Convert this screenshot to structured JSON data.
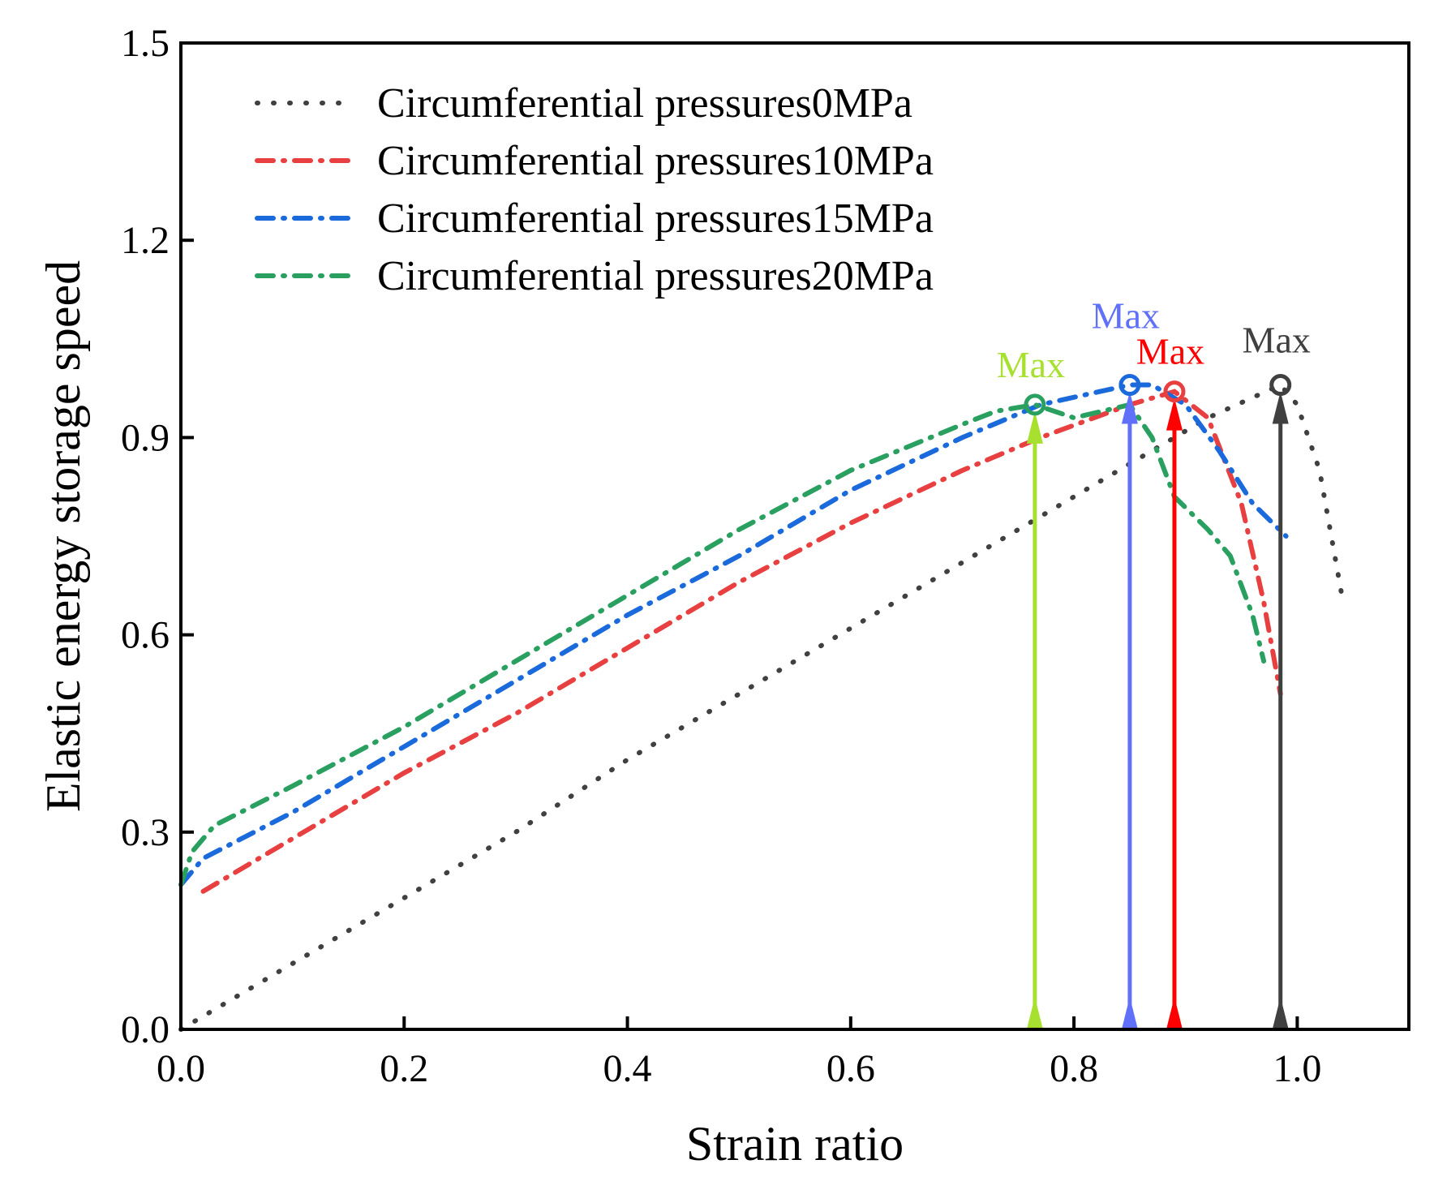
{
  "chart_data": {
    "type": "line",
    "title": "",
    "xlabel": "Strain ratio",
    "ylabel": "Elastic energy storage speed",
    "xlim": [
      0,
      1.1
    ],
    "ylim": [
      0,
      1.5
    ],
    "xticks": [
      "0.0",
      "0.2",
      "0.4",
      "0.6",
      "0.8",
      "1.0"
    ],
    "xtick_values": [
      0,
      0.2,
      0.4,
      0.6,
      0.8,
      1.0
    ],
    "yticks": [
      "0.0",
      "0.3",
      "0.6",
      "0.9",
      "1.2",
      "1.5"
    ],
    "ytick_values": [
      0,
      0.3,
      0.6,
      0.9,
      1.2,
      1.5
    ],
    "grid": false,
    "legend_placement": "top-left",
    "series": [
      {
        "name": "Circumferential pressures0MPa",
        "color": "#404040",
        "style": "dotted",
        "x": [
          0,
          0.1,
          0.2,
          0.3,
          0.4,
          0.5,
          0.6,
          0.7,
          0.77,
          0.85,
          0.92,
          0.985,
          1.0,
          1.02,
          1.04
        ],
        "y": [
          0,
          0.1,
          0.2,
          0.3,
          0.41,
          0.51,
          0.61,
          0.71,
          0.78,
          0.86,
          0.93,
          0.98,
          0.95,
          0.85,
          0.66
        ]
      },
      {
        "name": "Circumferential pressures10MPa",
        "color": "#e84040",
        "style": "dashdot",
        "x": [
          0.02,
          0.1,
          0.2,
          0.3,
          0.4,
          0.5,
          0.6,
          0.7,
          0.77,
          0.85,
          0.89,
          0.92,
          0.95,
          0.97,
          0.985
        ],
        "y": [
          0.21,
          0.29,
          0.39,
          0.48,
          0.58,
          0.68,
          0.77,
          0.85,
          0.9,
          0.95,
          0.97,
          0.93,
          0.8,
          0.65,
          0.51
        ]
      },
      {
        "name": "Circumferential pressures15MPa",
        "color": "#1a6adc",
        "style": "dashdot",
        "x": [
          0,
          0.02,
          0.1,
          0.2,
          0.3,
          0.4,
          0.5,
          0.6,
          0.7,
          0.77,
          0.85,
          0.87,
          0.9,
          0.93,
          0.96,
          0.99
        ],
        "y": [
          0.22,
          0.26,
          0.33,
          0.43,
          0.53,
          0.63,
          0.72,
          0.82,
          0.9,
          0.95,
          0.98,
          0.98,
          0.95,
          0.88,
          0.8,
          0.75
        ]
      },
      {
        "name": "Circumferential pressures20MPa",
        "color": "#2aa060",
        "style": "dashdot",
        "x": [
          0,
          0.01,
          0.03,
          0.1,
          0.2,
          0.3,
          0.4,
          0.5,
          0.6,
          0.7,
          0.73,
          0.765,
          0.8,
          0.85,
          0.87,
          0.89,
          0.92,
          0.94,
          0.96,
          0.97
        ],
        "y": [
          0.22,
          0.27,
          0.31,
          0.37,
          0.46,
          0.56,
          0.66,
          0.76,
          0.85,
          0.92,
          0.94,
          0.95,
          0.93,
          0.95,
          0.9,
          0.81,
          0.76,
          0.72,
          0.63,
          0.56
        ]
      }
    ],
    "annotations": [
      {
        "text": "Max",
        "x": 0.765,
        "y": 0.95,
        "color": "#a8e030",
        "marker_color": "#2aa060"
      },
      {
        "text": "Max",
        "x": 0.85,
        "y": 0.98,
        "color": "#6070f8",
        "marker_color": "#1a6adc"
      },
      {
        "text": "Max",
        "x": 0.89,
        "y": 0.97,
        "color": "#ff0000",
        "marker_color": "#e84040"
      },
      {
        "text": "Max",
        "x": 0.985,
        "y": 0.98,
        "color": "#404040",
        "marker_color": "#404040"
      }
    ]
  }
}
